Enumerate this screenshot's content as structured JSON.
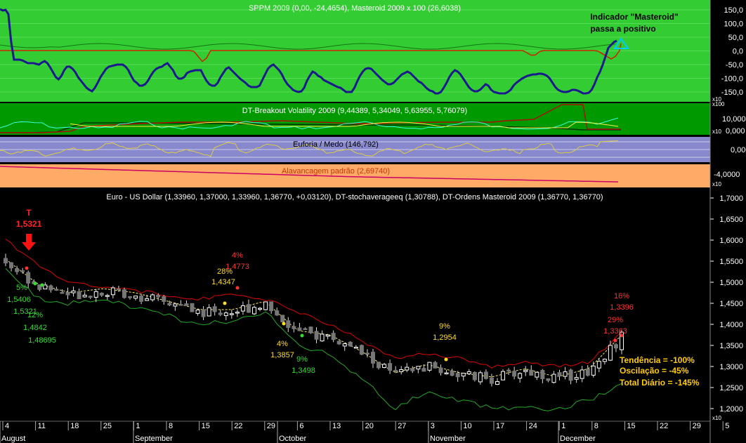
{
  "panels": {
    "sppm": {
      "title": "SPPM 2009 (0,00, -24,4654), Masteroid 2009 x 100 (26,6038)",
      "annotation_line1": "Indicador \"Masteroid\"",
      "annotation_line2": "passa a positivo",
      "axis_ticks": [
        "150,0",
        "100,0",
        "50,0",
        "0,0",
        "-50,0",
        "-100,0",
        "-150,0"
      ],
      "scale_tag": "x10",
      "bg_color": "#33cc33"
    },
    "breakout": {
      "title": "DT-Breakout Volatility 2009 (9,44389, 5,34049, 5,63955, 5,76079)",
      "scale_tag_top": "x100",
      "scale_tag_bottom": "x10",
      "axis_ticks": [
        "10,000",
        "0,000"
      ],
      "bg_color": "#009900"
    },
    "euforia": {
      "title": "Euforia / Medo (146,792)",
      "axis_ticks": [
        "0,000"
      ],
      "bg_color": "#8888cc"
    },
    "alavancagem": {
      "title": "Alavancagem padrão (2,69740)",
      "axis_ticks": [
        "-4,0000"
      ],
      "scale_tag": "x10",
      "bg_color": "#ffaa66"
    },
    "price": {
      "title": "Euro - US Dollar (1,33960, 1,37000, 1,33960, 1,36770, +0,03120), DT-stochaverageeq (1,30788), DT-Ordens Masteroid 2009 (1,36770, 1,36770)",
      "axis_ticks": [
        "1,7000",
        "1,6500",
        "1,6000",
        "1,5500",
        "1,5000",
        "1,4500",
        "1,4000",
        "1,3500",
        "1,3000",
        "1,2500",
        "1,2000"
      ],
      "scale_tag": "x10",
      "summary": {
        "tendencia": "Tendência = -100%",
        "oscilacao": "Oscilação = -45%",
        "total": "Total Diário = -145%"
      },
      "top_marker": {
        "label": "T",
        "value": "1,5321"
      }
    }
  },
  "x_axis": {
    "day_ticks": [
      "4",
      "11",
      "18",
      "25",
      "1",
      "8",
      "15",
      "22",
      "29",
      "6",
      "13",
      "20",
      "27",
      "3",
      "10",
      "17",
      "24",
      "1",
      "8",
      "15",
      "22",
      "29",
      "5"
    ],
    "months": [
      "August",
      "September",
      "October",
      "November",
      "December"
    ]
  },
  "chart_data": {
    "type": "candlestick",
    "title": "Euro - US Dollar (1,33960, 1,37000, 1,33960, 1,36770, +0,03120), DT-stochaverageeq (1,30788), DT-Ordens Masteroid 2009 (1,36770, 1,36770)",
    "x": [
      "4",
      "11",
      "18",
      "25",
      "1",
      "8",
      "15",
      "22",
      "29",
      "6",
      "13",
      "20",
      "27",
      "3",
      "10",
      "17",
      "24",
      "1",
      "8",
      "15"
    ],
    "ylim": [
      1.17,
      1.72
    ],
    "close_approx": [
      1.55,
      1.49,
      1.47,
      1.48,
      1.47,
      1.45,
      1.43,
      1.43,
      1.45,
      1.38,
      1.37,
      1.33,
      1.28,
      1.3,
      1.28,
      1.27,
      1.29,
      1.27,
      1.29,
      1.37
    ],
    "upper_band_approx": [
      1.6,
      1.54,
      1.5,
      1.49,
      1.48,
      1.47,
      1.46,
      1.47,
      1.46,
      1.43,
      1.4,
      1.36,
      1.32,
      1.33,
      1.32,
      1.3,
      1.31,
      1.3,
      1.31,
      1.38
    ],
    "lower_band_approx": [
      1.53,
      1.46,
      1.45,
      1.46,
      1.44,
      1.42,
      1.4,
      1.41,
      1.43,
      1.35,
      1.33,
      1.27,
      1.2,
      1.24,
      1.22,
      1.2,
      1.2,
      1.2,
      1.22,
      1.26
    ],
    "annotations": [
      {
        "pct": "5%",
        "value": "1,5406",
        "color": "green"
      },
      {
        "pct": "",
        "value": "1,5321",
        "color": "green"
      },
      {
        "pct": "12%",
        "value": "1,4842",
        "color": "green"
      },
      {
        "pct": "",
        "value": "1,48695",
        "color": "green"
      },
      {
        "pct": "28%",
        "value": "1,4347",
        "color": "yellow"
      },
      {
        "pct": "4%",
        "value": "1,4773",
        "color": "red"
      },
      {
        "pct": "4%",
        "value": "1,3857",
        "color": "yellow"
      },
      {
        "pct": "9%",
        "value": "1,3498",
        "color": "green"
      },
      {
        "pct": "9%",
        "value": "1,2954",
        "color": "yellow"
      },
      {
        "pct": "16%",
        "value": "1,3396",
        "color": "red"
      },
      {
        "pct": "29%",
        "value": "1,3363",
        "color": "red"
      }
    ]
  }
}
